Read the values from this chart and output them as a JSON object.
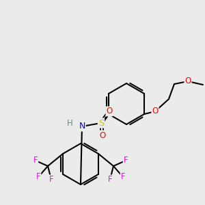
{
  "bg_color": "#ebebeb",
  "bond_color": "#000000",
  "atom_colors": {
    "O": "#ff0000",
    "N": "#0000ff",
    "S": "#cccc00",
    "F": "#ff00ff",
    "H": "#5a9090",
    "C": "#000000"
  }
}
